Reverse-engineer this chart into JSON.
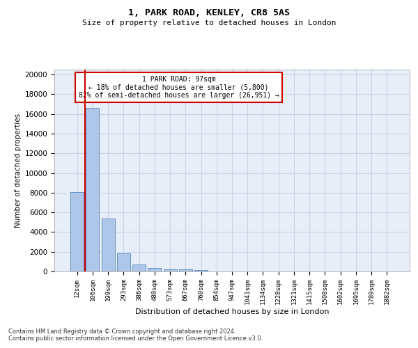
{
  "title1": "1, PARK ROAD, KENLEY, CR8 5AS",
  "title2": "Size of property relative to detached houses in London",
  "xlabel": "Distribution of detached houses by size in London",
  "ylabel": "Number of detached properties",
  "bar_labels": [
    "12sqm",
    "106sqm",
    "199sqm",
    "293sqm",
    "386sqm",
    "480sqm",
    "573sqm",
    "667sqm",
    "760sqm",
    "854sqm",
    "947sqm",
    "1041sqm",
    "1134sqm",
    "1228sqm",
    "1321sqm",
    "1415sqm",
    "1508sqm",
    "1602sqm",
    "1695sqm",
    "1789sqm",
    "1882sqm"
  ],
  "bar_values": [
    8050,
    16600,
    5350,
    1850,
    700,
    320,
    230,
    200,
    130,
    0,
    0,
    0,
    0,
    0,
    0,
    0,
    0,
    0,
    0,
    0,
    0
  ],
  "bar_color": "#aec6e8",
  "bar_edge_color": "#5588bb",
  "vline_color": "#cc0000",
  "annotation_text": "1 PARK ROAD: 97sqm\n← 18% of detached houses are smaller (5,800)\n82% of semi-detached houses are larger (26,951) →",
  "annotation_box_color": "#ffffff",
  "annotation_box_edge": "#cc0000",
  "ylim": [
    0,
    20500
  ],
  "yticks": [
    0,
    2000,
    4000,
    6000,
    8000,
    10000,
    12000,
    14000,
    16000,
    18000,
    20000
  ],
  "grid_color": "#c8d4e8",
  "background_color": "#e8eef8",
  "footer1": "Contains HM Land Registry data © Crown copyright and database right 2024.",
  "footer2": "Contains public sector information licensed under the Open Government Licence v3.0."
}
